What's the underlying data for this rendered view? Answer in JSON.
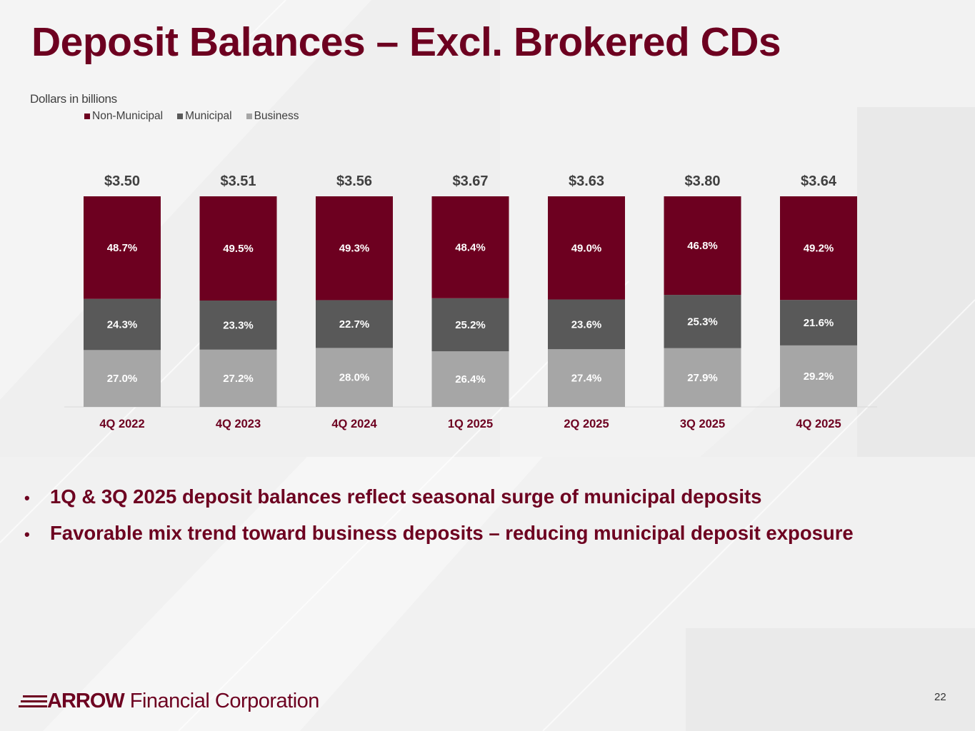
{
  "slide": {
    "title": "Deposit Balances – Excl. Brokered CDs",
    "subtitle": "Dollars in billions",
    "page_number": "22"
  },
  "bullets": [
    "1Q & 3Q 2025 deposit balances reflect seasonal surge of municipal deposits",
    "Favorable mix trend toward business deposits – reducing municipal deposit exposure"
  ],
  "logo": {
    "word": "ARROW",
    "rest": "Financial Corporation"
  },
  "colors": {
    "non_municipal": "#6d0020",
    "municipal": "#595959",
    "business": "#a6a6a6"
  },
  "chart_data": {
    "type": "bar",
    "stacked": true,
    "normalized": true,
    "categories": [
      "4Q 2022",
      "4Q 2023",
      "4Q 2024",
      "1Q 2025",
      "2Q 2025",
      "3Q 2025",
      "4Q 2025"
    ],
    "totals": [
      "$3.50",
      "$3.51",
      "$3.56",
      "$3.67",
      "$3.63",
      "$3.80",
      "$3.64"
    ],
    "series": [
      {
        "name": "Business",
        "color": "#a6a6a6",
        "values": [
          27.0,
          27.2,
          28.0,
          26.4,
          27.4,
          27.9,
          29.2
        ],
        "labels": [
          "27.0%",
          "27.2%",
          "28.0%",
          "26.4%",
          "27.4%",
          "27.9%",
          "29.2%"
        ]
      },
      {
        "name": "Municipal",
        "color": "#595959",
        "values": [
          24.3,
          23.3,
          22.7,
          25.2,
          23.6,
          25.3,
          21.6
        ],
        "labels": [
          "24.3%",
          "23.3%",
          "22.7%",
          "25.2%",
          "23.6%",
          "25.3%",
          "21.6%"
        ]
      },
      {
        "name": "Non-Municipal",
        "color": "#6d0020",
        "values": [
          48.7,
          49.5,
          49.3,
          48.4,
          49.0,
          46.8,
          49.2
        ],
        "labels": [
          "48.7%",
          "49.5%",
          "49.3%",
          "48.4%",
          "49.0%",
          "46.8%",
          "49.2%"
        ]
      }
    ],
    "legend": [
      "Non-Municipal",
      "Municipal",
      "Business"
    ],
    "ylim": [
      0,
      100
    ],
    "grid": false
  }
}
